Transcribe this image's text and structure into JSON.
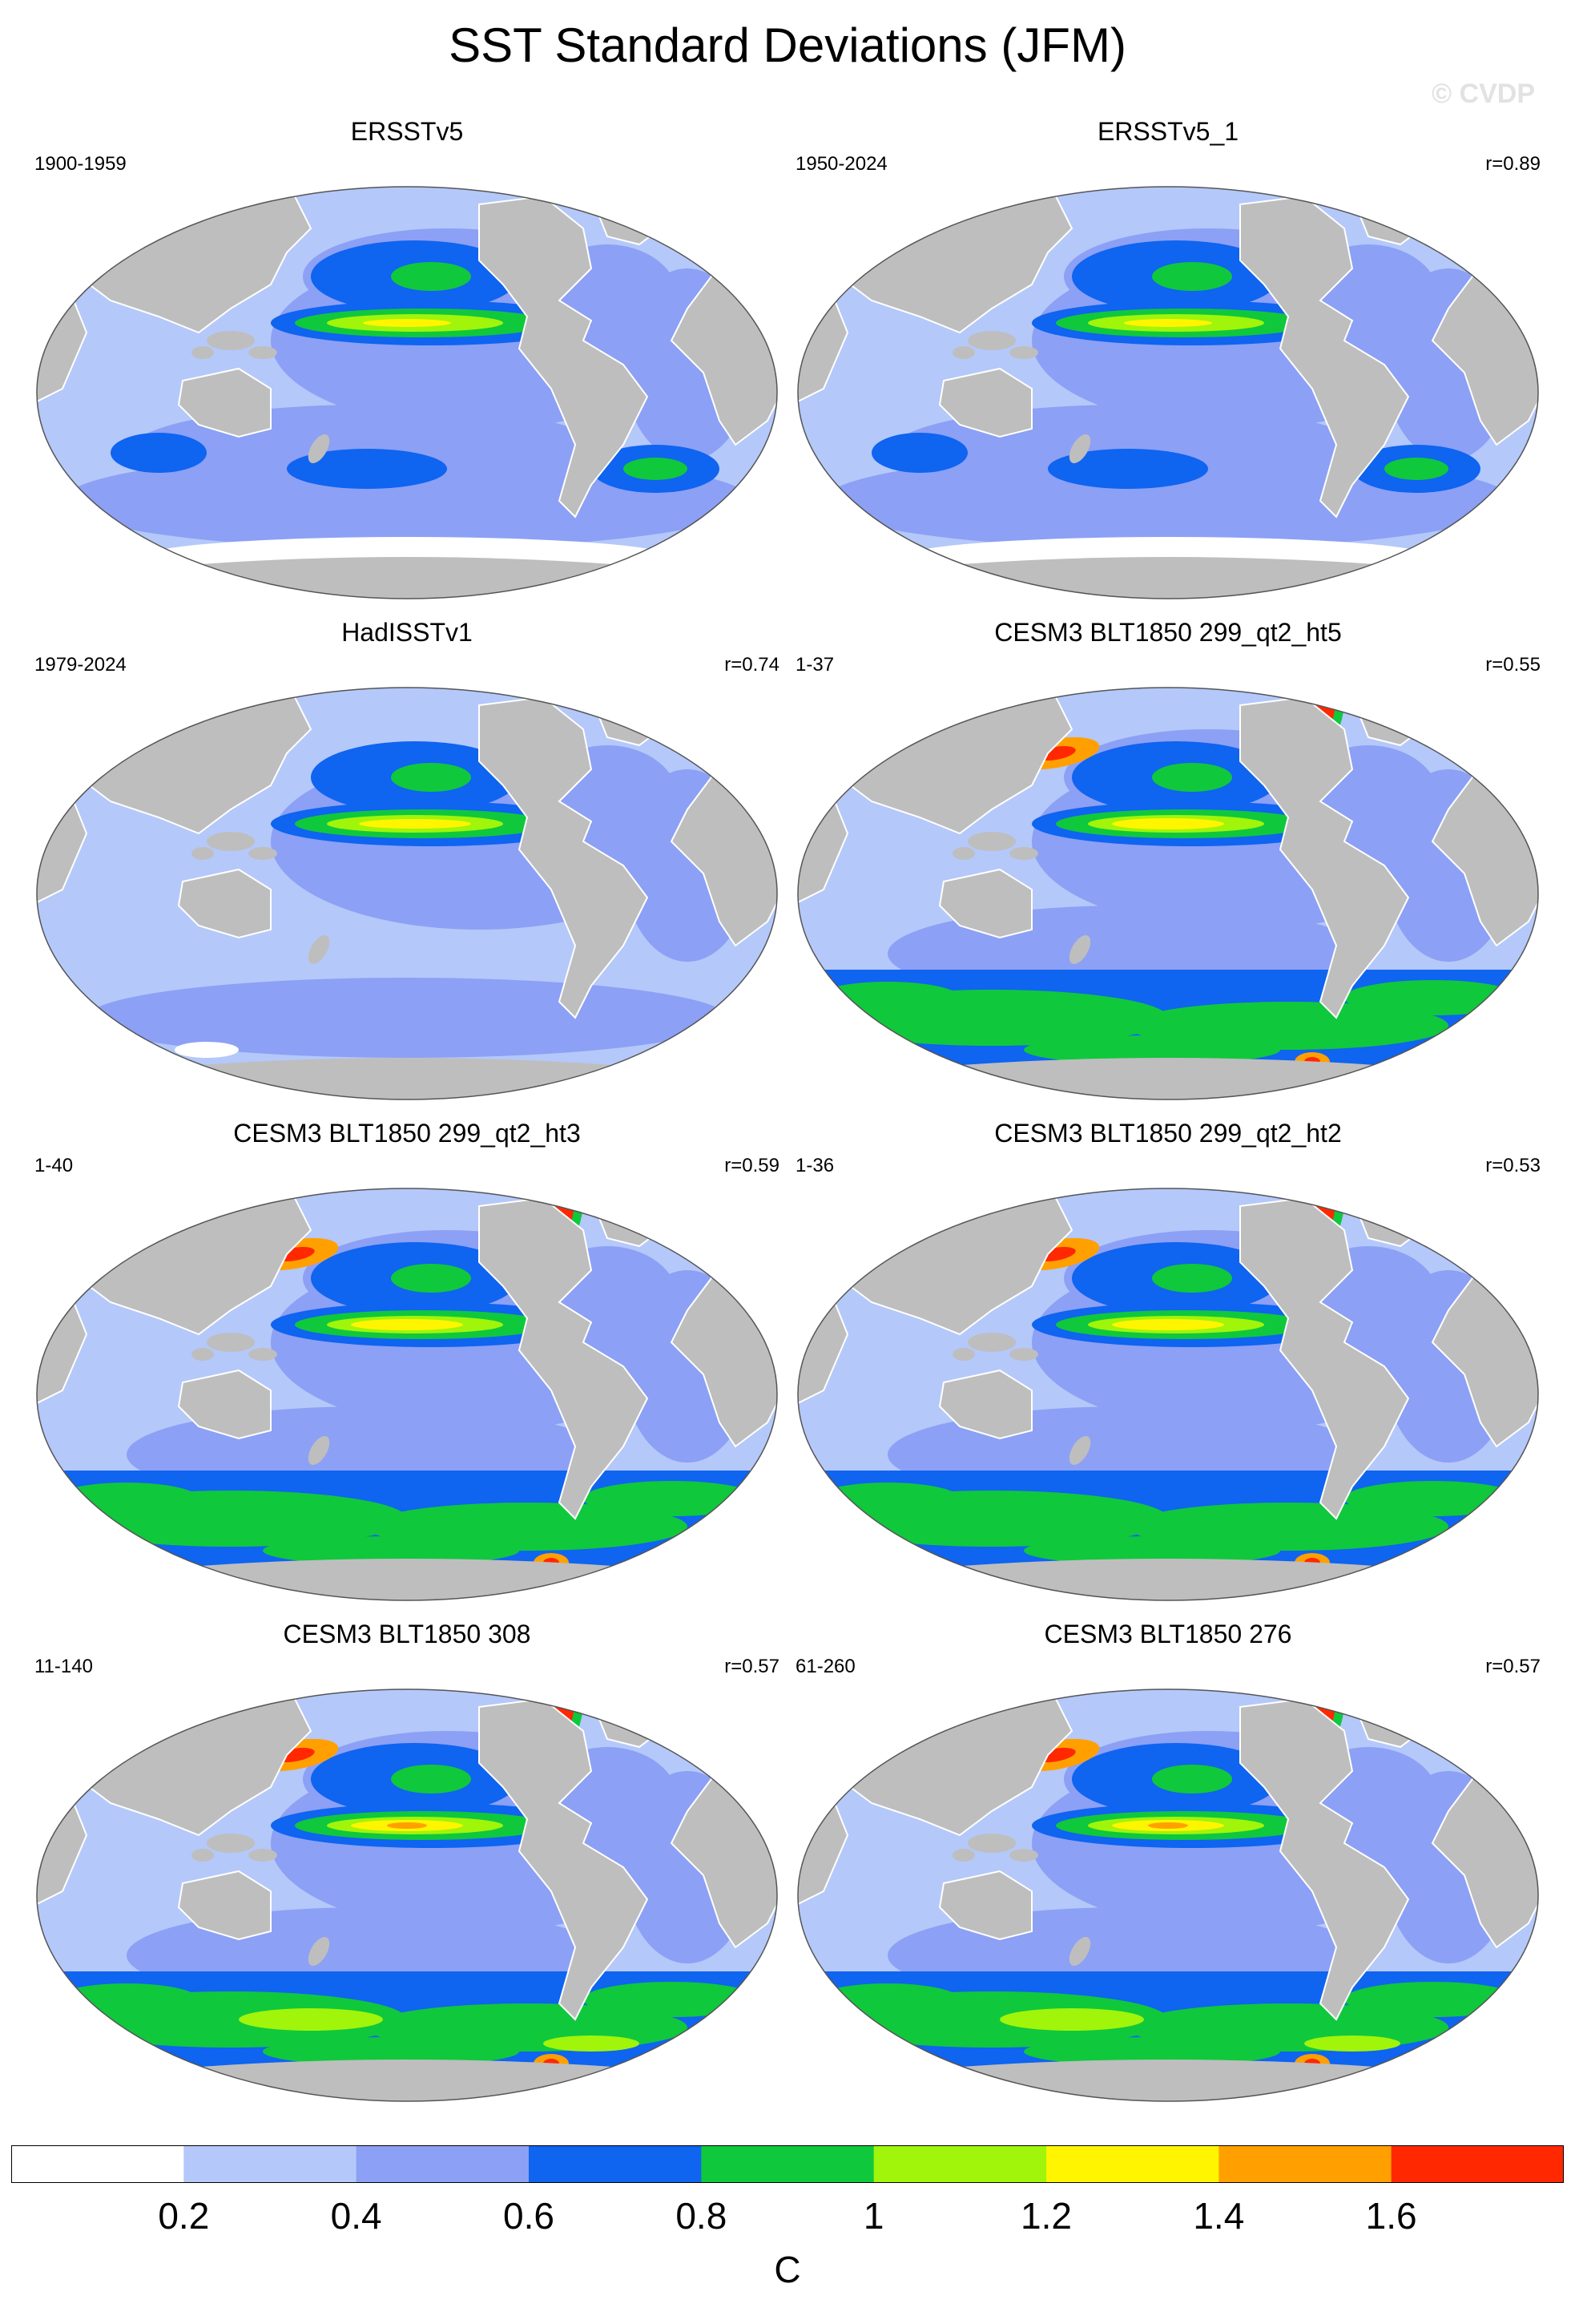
{
  "title": "SST Standard Deviations (JFM)",
  "watermark": "© CVDP",
  "panels": [
    {
      "title": "ERSSTv5",
      "period": "1900-1959",
      "corr": "",
      "style": "erss_a"
    },
    {
      "title": "ERSSTv5_1",
      "period": "1950-2024",
      "corr": "r=0.89",
      "style": "erss_b"
    },
    {
      "title": "HadISSTv1",
      "period": "1979-2024",
      "corr": "r=0.74",
      "style": "had"
    },
    {
      "title": "CESM3 BLT1850 299_qt2_ht5",
      "period": "1-37",
      "corr": "r=0.55",
      "style": "cesm"
    },
    {
      "title": "CESM3 BLT1850 299_qt2_ht3",
      "period": "1-40",
      "corr": "r=0.59",
      "style": "cesm"
    },
    {
      "title": "CESM3 BLT1850 299_qt2_ht2",
      "period": "1-36",
      "corr": "r=0.53",
      "style": "cesm"
    },
    {
      "title": "CESM3 BLT1850 308",
      "period": "11-140",
      "corr": "r=0.57",
      "style": "cesm_strong"
    },
    {
      "title": "CESM3 BLT1850 276",
      "period": "61-260",
      "corr": "r=0.57",
      "style": "cesm_strong"
    }
  ],
  "colorbar": {
    "labels": [
      "0.2",
      "0.4",
      "0.6",
      "0.8",
      "1",
      "1.2",
      "1.4",
      "1.6"
    ],
    "colors": [
      "#ffffff",
      "#b4c8fa",
      "#8ca0f5",
      "#0f64f0",
      "#10c83c",
      "#a0f50a",
      "#fff500",
      "#ffa000",
      "#ff2800"
    ],
    "unit": "C"
  },
  "map_colors": {
    "land": "#bebebe",
    "ocean_base": "#b4c8fa"
  }
}
